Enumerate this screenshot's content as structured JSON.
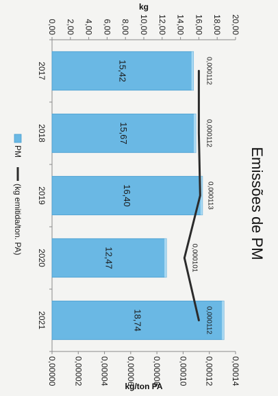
{
  "chart_data": {
    "type": "bar",
    "title": "Emissões de PM",
    "categories": [
      "2017",
      "2018",
      "2019",
      "2020",
      "2021"
    ],
    "series": [
      {
        "name": "PM",
        "type": "bar",
        "axis": "primary",
        "values": [
          15.42,
          15.67,
          16.4,
          12.47,
          18.74
        ],
        "labels": [
          "15,42",
          "15,67",
          "16,40",
          "12,47",
          "18,74"
        ],
        "color": "#6ab8e4"
      },
      {
        "name": "(kg emitida/ton. PA)",
        "type": "line",
        "axis": "secondary",
        "values": [
          0.000112,
          0.000112,
          0.000113,
          0.000101,
          0.000112
        ],
        "labels": [
          "0,000112",
          "0,000112",
          "0,000113",
          "0,000101",
          "0,000112"
        ],
        "color": "#2b2b2b"
      }
    ],
    "primary_axis": {
      "label": "kg",
      "range": [
        0,
        20
      ],
      "ticks": [
        "0,00",
        "2,00",
        "4,00",
        "6,00",
        "8,00",
        "10,00",
        "12,00",
        "14,00",
        "16,00",
        "18,00",
        "20,00"
      ]
    },
    "secondary_axis": {
      "label": "kg/ton PA",
      "range": [
        0,
        0.00014
      ],
      "ticks": [
        "0,00000",
        "0,00002",
        "0,00004",
        "0,00006",
        "0,00008",
        "0,00010",
        "0,00012",
        "0,00014"
      ]
    },
    "legend_position": "bottom",
    "grid": false,
    "orientation": "image rotated 90° clockwise"
  }
}
